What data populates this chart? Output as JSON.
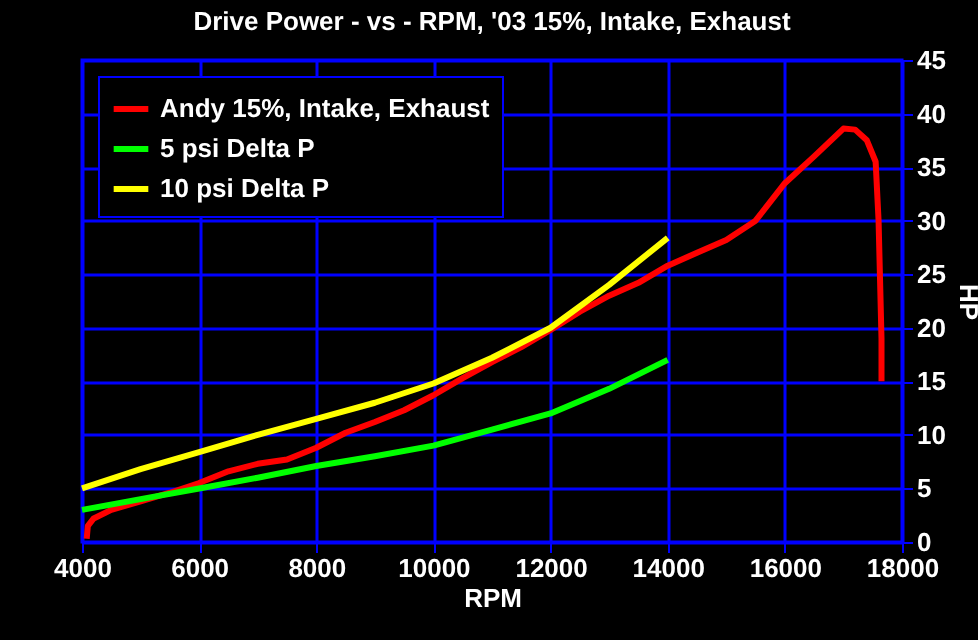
{
  "chart_data": {
    "type": "line",
    "title": "Drive Power - vs - RPM, '03 15%, Intake, Exhaust",
    "xlabel": "RPM",
    "ylabel": "HP",
    "xlim": [
      4000,
      18000
    ],
    "xticks": [
      4000,
      6000,
      8000,
      10000,
      12000,
      14000,
      16000,
      18000
    ],
    "ylim": [
      0,
      45
    ],
    "yticks": [
      0,
      5,
      10,
      15,
      20,
      25,
      30,
      35,
      40,
      45
    ],
    "grid": true,
    "legend": "top left",
    "marker": "none",
    "series": [
      {
        "name": "Andy 15%, Intake, Exhaust",
        "color": "#ff0000",
        "x": [
          4080,
          4100,
          4200,
          4500,
          5000,
          5500,
          6000,
          6500,
          7000,
          7500,
          8000,
          8500,
          9000,
          9500,
          10000,
          10500,
          11000,
          11500,
          12000,
          12500,
          13000,
          13500,
          14000,
          14500,
          15000,
          15500,
          16000,
          16500,
          17000,
          17200,
          17400,
          17550,
          17600,
          17650,
          17650
        ],
        "values": [
          0.3,
          1.5,
          2.2,
          3,
          3.8,
          4.6,
          5.5,
          6.6,
          7.3,
          7.7,
          8.8,
          10.2,
          11.2,
          12.3,
          13.7,
          15.3,
          16.8,
          18.2,
          19.8,
          21.5,
          23,
          24.2,
          25.8,
          27,
          28.2,
          30,
          33.5,
          36,
          38.6,
          38.5,
          37.5,
          35.5,
          30,
          19,
          15
        ]
      },
      {
        "name": "5 psi Delta P",
        "color": "#00ff00",
        "x": [
          4000,
          5000,
          6000,
          7000,
          8000,
          9000,
          10000,
          11000,
          12000,
          13000,
          14000
        ],
        "values": [
          3,
          4,
          5,
          6,
          7.1,
          8,
          9,
          10.5,
          12,
          14.3,
          17
        ]
      },
      {
        "name": "10 psi Delta P",
        "color": "#ffff00",
        "x": [
          4000,
          5000,
          6000,
          7000,
          8000,
          9000,
          10000,
          11000,
          12000,
          13000,
          14000
        ],
        "values": [
          5,
          6.8,
          8.4,
          10,
          11.5,
          13,
          14.8,
          17.2,
          20,
          24,
          28.4
        ]
      }
    ]
  }
}
